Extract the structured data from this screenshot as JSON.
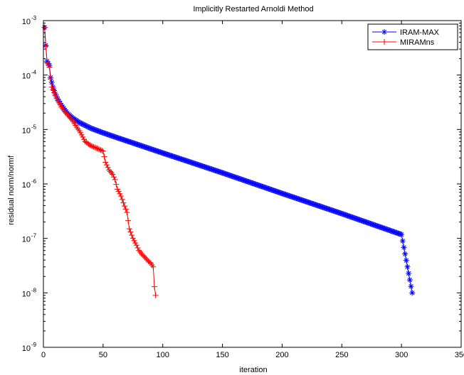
{
  "chart_data": {
    "type": "line",
    "title": "Implicitly Restarted Arnoldi Method",
    "xlabel": "iteration",
    "ylabel": "residual norm/normf",
    "xlim": [
      0,
      350
    ],
    "ylim": [
      1e-09,
      0.001
    ],
    "yscale": "log",
    "grid": false,
    "legend_position": "top-right",
    "xticks": [
      "0",
      "50",
      "100",
      "150",
      "200",
      "250",
      "300",
      "350"
    ],
    "yticks": [
      {
        "base": "10",
        "exp": "-9"
      },
      {
        "base": "10",
        "exp": "-8"
      },
      {
        "base": "10",
        "exp": "-7"
      },
      {
        "base": "10",
        "exp": "-6"
      },
      {
        "base": "10",
        "exp": "-5"
      },
      {
        "base": "10",
        "exp": "-4"
      },
      {
        "base": "10",
        "exp": "-3"
      }
    ],
    "series": [
      {
        "name": "IRAM-MAX",
        "color": "#0000ff",
        "marker": "asterisk",
        "points": [
          [
            1,
            0.00075
          ],
          [
            2,
            0.00035
          ],
          [
            3,
            0.00018
          ],
          [
            5,
            0.00015
          ],
          [
            6,
            9e-05
          ],
          [
            8,
            6e-05
          ],
          [
            10,
            4.5e-05
          ],
          [
            12,
            3.6e-05
          ],
          [
            15,
            2.8e-05
          ],
          [
            20,
            2e-05
          ],
          [
            25,
            1.6e-05
          ],
          [
            30,
            1.35e-05
          ],
          [
            40,
            1.05e-05
          ],
          [
            50,
            8.7e-06
          ],
          [
            60,
            7.3e-06
          ],
          [
            80,
            5.2e-06
          ],
          [
            100,
            3.7e-06
          ],
          [
            120,
            2.65e-06
          ],
          [
            150,
            1.6e-06
          ],
          [
            200,
            6.7e-07
          ],
          [
            250,
            2.85e-07
          ],
          [
            300,
            1.18e-07
          ],
          [
            309,
            1e-08
          ]
        ]
      },
      {
        "name": "MIRAMns",
        "color": "#ff0000",
        "marker": "plus",
        "points": [
          [
            1,
            0.00075
          ],
          [
            2,
            0.00034
          ],
          [
            3,
            0.00017
          ],
          [
            5,
            0.00014
          ],
          [
            6,
            8.5e-05
          ],
          [
            7,
            6e-05
          ],
          [
            10,
            4.2e-05
          ],
          [
            12,
            3.4e-05
          ],
          [
            15,
            2.6e-05
          ],
          [
            18,
            2.1e-05
          ],
          [
            20,
            1.9e-05
          ],
          [
            25,
            1.4e-05
          ],
          [
            28,
            1.1e-05
          ],
          [
            30,
            9.5e-06
          ],
          [
            32,
            8e-06
          ],
          [
            35,
            6e-06
          ],
          [
            40,
            5e-06
          ],
          [
            45,
            4.5e-06
          ],
          [
            50,
            4e-06
          ],
          [
            52,
            2.5e-06
          ],
          [
            55,
            1.8e-06
          ],
          [
            58,
            1.5e-06
          ],
          [
            60,
            1.2e-06
          ],
          [
            62,
            8e-07
          ],
          [
            65,
            6e-07
          ],
          [
            67,
            4.5e-07
          ],
          [
            70,
            3e-07
          ],
          [
            72,
            1.5e-07
          ],
          [
            75,
            1e-07
          ],
          [
            78,
            7.5e-08
          ],
          [
            80,
            6e-08
          ],
          [
            83,
            5e-08
          ],
          [
            85,
            4.5e-08
          ],
          [
            88,
            3.8e-08
          ],
          [
            90,
            3.5e-08
          ],
          [
            92,
            3e-08
          ],
          [
            93,
            1.3e-08
          ],
          [
            94,
            9e-09
          ]
        ]
      }
    ]
  }
}
